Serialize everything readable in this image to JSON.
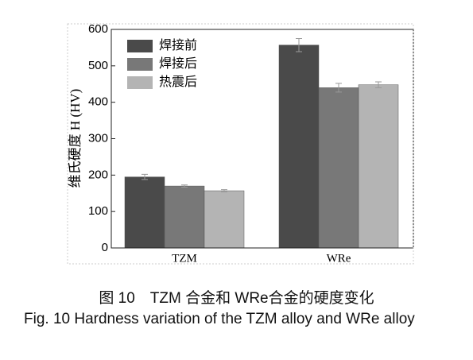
{
  "chart_data": {
    "type": "bar",
    "y_label": "维氏硬度 H (HV)",
    "categories": [
      "TZM",
      "WRe"
    ],
    "series": [
      {
        "name": "焊接前",
        "color": "#4a4a4a",
        "values": [
          195,
          557
        ],
        "errors": [
          7,
          18
        ]
      },
      {
        "name": "焊接后",
        "color": "#787878",
        "values": [
          170,
          440
        ],
        "errors": [
          3,
          12
        ]
      },
      {
        "name": "热震后",
        "color": "#b4b4b4",
        "values": [
          157,
          448
        ],
        "errors": [
          3,
          8
        ]
      }
    ],
    "ylim": [
      0,
      600
    ],
    "yticks": [
      0,
      100,
      200,
      300,
      400,
      500,
      600
    ],
    "legend": "top-left",
    "caption_cn": "图 10　TZM 合金和 WRe合金的硬度变化",
    "caption_en": "Fig. 10   Hardness variation of the TZM alloy and WRe alloy"
  }
}
